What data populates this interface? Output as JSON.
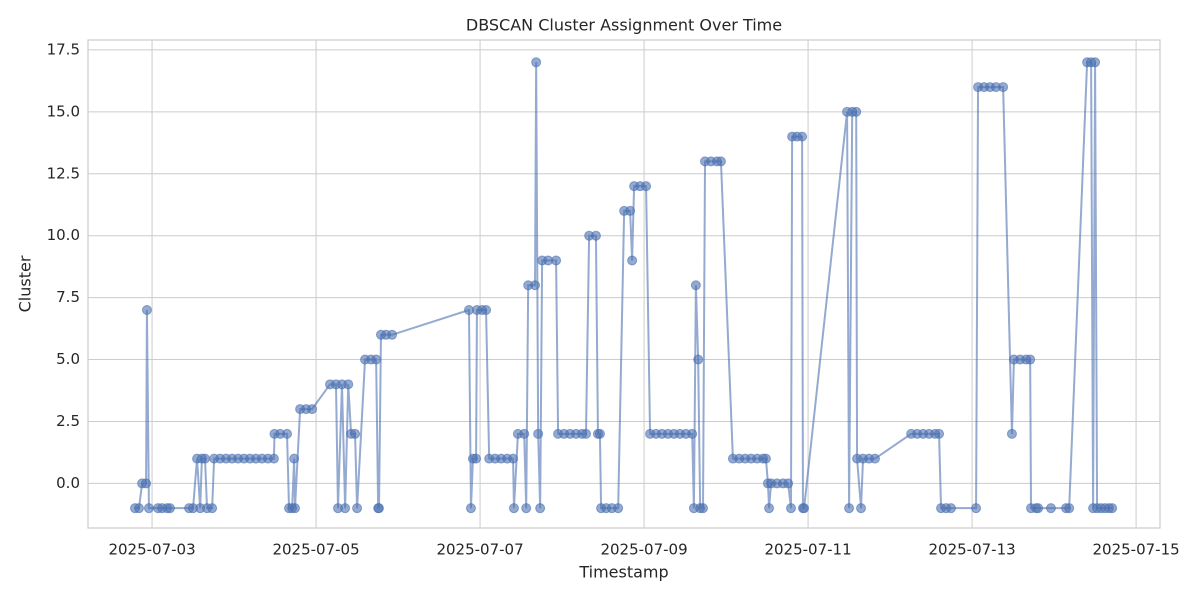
{
  "chart_data": {
    "type": "line",
    "title": "DBSCAN Cluster Assignment Over Time",
    "x_label": "Timestamp",
    "y_label": "Cluster",
    "color": "#4c72b0",
    "grid": true,
    "x": [
      "2025-07-02 19:00",
      "2025-07-02 20:10",
      "2025-07-02 21:05",
      "2025-07-02 22:15",
      "2025-07-02 22:30",
      "2025-07-02 23:05",
      "2025-07-03 01:45",
      "2025-07-03 02:55",
      "2025-07-03 04:25",
      "2025-07-03 05:15",
      "2025-07-03 10:50",
      "2025-07-03 12:00",
      "2025-07-03 13:10",
      "2025-07-03 14:05",
      "2025-07-03 14:35",
      "2025-07-03 15:30",
      "2025-07-03 16:05",
      "2025-07-03 17:35",
      "2025-07-03 18:10",
      "2025-07-03 19:55",
      "2025-07-03 21:40",
      "2025-07-03 23:25",
      "2025-07-04 01:10",
      "2025-07-04 02:55",
      "2025-07-04 04:40",
      "2025-07-04 06:25",
      "2025-07-04 08:10",
      "2025-07-04 09:55",
      "2025-07-04 11:40",
      "2025-07-04 11:50",
      "2025-07-04 13:30",
      "2025-07-04 15:30",
      "2025-07-04 16:05",
      "2025-07-04 17:00",
      "2025-07-04 17:35",
      "2025-07-04 17:50",
      "2025-07-04 19:20",
      "2025-07-04 21:05",
      "2025-07-04 22:50",
      "2025-07-05 04:05",
      "2025-07-05 05:50",
      "2025-07-05 06:25",
      "2025-07-05 07:35",
      "2025-07-05 08:30",
      "2025-07-05 09:25",
      "2025-07-05 10:15",
      "2025-07-05 11:25",
      "2025-07-05 12:00",
      "2025-07-05 14:20",
      "2025-07-05 16:05",
      "2025-07-05 17:35",
      "2025-07-05 18:10",
      "2025-07-05 18:25",
      "2025-07-05 19:00",
      "2025-07-05 20:30",
      "2025-07-05 22:15",
      "2025-07-06 20:45",
      "2025-07-06 21:20",
      "2025-07-06 21:55",
      "2025-07-06 22:50",
      "2025-07-06 23:05",
      "2025-07-07 00:35",
      "2025-07-07 01:45",
      "2025-07-07 02:40",
      "2025-07-07 04:25",
      "2025-07-07 06:10",
      "2025-07-07 07:55",
      "2025-07-07 09:40",
      "2025-07-07 09:55",
      "2025-07-07 11:05",
      "2025-07-07 12:55",
      "2025-07-07 13:30",
      "2025-07-07 14:05",
      "2025-07-07 16:05",
      "2025-07-07 16:25",
      "2025-07-07 17:00",
      "2025-07-07 17:35",
      "2025-07-07 18:10",
      "2025-07-07 19:55",
      "2025-07-07 22:15",
      "2025-07-07 22:50",
      "2025-07-08 00:35",
      "2025-07-08 02:20",
      "2025-07-08 04:05",
      "2025-07-08 05:50",
      "2025-07-08 07:00",
      "2025-07-08 07:55",
      "2025-07-08 09:55",
      "2025-07-08 10:30",
      "2025-07-08 11:05",
      "2025-07-08 11:25",
      "2025-07-08 12:55",
      "2025-07-08 14:35",
      "2025-07-08 16:25",
      "2025-07-08 18:10",
      "2025-07-08 19:55",
      "2025-07-08 20:30",
      "2025-07-08 21:05",
      "2025-07-08 22:50",
      "2025-07-09 00:35",
      "2025-07-09 01:45",
      "2025-07-09 03:30",
      "2025-07-09 05:15",
      "2025-07-09 07:00",
      "2025-07-09 08:45",
      "2025-07-09 10:30",
      "2025-07-09 12:15",
      "2025-07-09 14:05",
      "2025-07-09 14:35",
      "2025-07-09 15:10",
      "2025-07-09 15:50",
      "2025-07-09 16:25",
      "2025-07-09 17:15",
      "2025-07-09 17:50",
      "2025-07-09 19:35",
      "2025-07-09 21:20",
      "2025-07-09 22:30",
      "2025-07-10 02:00",
      "2025-07-10 03:50",
      "2025-07-10 05:35",
      "2025-07-10 07:20",
      "2025-07-10 09:05",
      "2025-07-10 10:50",
      "2025-07-10 11:40",
      "2025-07-10 12:15",
      "2025-07-10 12:35",
      "2025-07-10 13:10",
      "2025-07-10 14:55",
      "2025-07-10 16:40",
      "2025-07-10 18:10",
      "2025-07-10 19:00",
      "2025-07-10 19:20",
      "2025-07-10 20:45",
      "2025-07-10 22:15",
      "2025-07-10 22:30",
      "2025-07-10 22:50",
      "2025-07-11 11:25",
      "2025-07-11 12:00",
      "2025-07-11 12:55",
      "2025-07-11 14:05",
      "2025-07-11 14:20",
      "2025-07-11 15:30",
      "2025-07-11 16:05",
      "2025-07-11 17:50",
      "2025-07-11 19:35",
      "2025-07-12 06:10",
      "2025-07-12 07:55",
      "2025-07-12 09:40",
      "2025-07-12 11:25",
      "2025-07-12 13:10",
      "2025-07-12 14:20",
      "2025-07-12 14:55",
      "2025-07-12 16:25",
      "2025-07-12 17:50",
      "2025-07-13 01:10",
      "2025-07-13 01:45",
      "2025-07-13 03:30",
      "2025-07-13 05:15",
      "2025-07-13 07:00",
      "2025-07-13 09:05",
      "2025-07-13 11:40",
      "2025-07-13 12:15",
      "2025-07-13 14:05",
      "2025-07-13 15:50",
      "2025-07-13 17:00",
      "2025-07-13 17:15",
      "2025-07-13 18:45",
      "2025-07-13 19:20",
      "2025-07-13 23:05",
      "2025-07-14 03:30",
      "2025-07-14 04:25",
      "2025-07-14 09:40",
      "2025-07-14 10:50",
      "2025-07-14 11:25",
      "2025-07-14 12:00",
      "2025-07-14 12:35",
      "2025-07-14 13:45",
      "2025-07-14 14:55",
      "2025-07-14 16:05",
      "2025-07-14 17:00"
    ],
    "values": [
      -1,
      -1,
      0,
      0,
      7,
      -1,
      -1,
      -1,
      -1,
      -1,
      -1,
      -1,
      1,
      -1,
      1,
      1,
      -1,
      -1,
      1,
      1,
      1,
      1,
      1,
      1,
      1,
      1,
      1,
      1,
      1,
      2,
      2,
      2,
      -1,
      -1,
      1,
      -1,
      3,
      3,
      3,
      4,
      4,
      -1,
      4,
      -1,
      4,
      2,
      2,
      -1,
      5,
      5,
      5,
      -1,
      -1,
      6,
      6,
      6,
      7,
      -1,
      1,
      1,
      7,
      7,
      7,
      1,
      1,
      1,
      1,
      1,
      -1,
      2,
      2,
      -1,
      8,
      8,
      17,
      2,
      -1,
      9,
      9,
      9,
      2,
      2,
      2,
      2,
      2,
      2,
      10,
      10,
      2,
      2,
      -1,
      -1,
      -1,
      -1,
      11,
      11,
      9,
      12,
      12,
      12,
      2,
      2,
      2,
      2,
      2,
      2,
      2,
      2,
      -1,
      8,
      5,
      -1,
      -1,
      13,
      13,
      13,
      13,
      1,
      1,
      1,
      1,
      1,
      1,
      1,
      0,
      -1,
      0,
      0,
      0,
      0,
      -1,
      14,
      14,
      14,
      -1,
      -1,
      15,
      -1,
      15,
      15,
      1,
      -1,
      1,
      1,
      1,
      2,
      2,
      2,
      2,
      2,
      2,
      -1,
      -1,
      -1,
      -1,
      16,
      16,
      16,
      16,
      16,
      2,
      5,
      5,
      5,
      5,
      -1,
      -1,
      -1,
      -1,
      -1,
      -1,
      17,
      17,
      -1,
      17,
      -1,
      -1,
      -1,
      -1,
      -1
    ],
    "xlim": [
      "2025-07-02 05:15",
      "2025-07-15 07:00"
    ],
    "xticks": [
      "2025-07-03",
      "2025-07-05",
      "2025-07-07",
      "2025-07-09",
      "2025-07-11",
      "2025-07-13",
      "2025-07-15"
    ],
    "ylim": [
      -1.8,
      17.9
    ],
    "yticks": [
      {
        "value": 0,
        "label": "0.0"
      },
      {
        "value": 2.5,
        "label": "2.5"
      },
      {
        "value": 5,
        "label": "5.0"
      },
      {
        "value": 7.5,
        "label": "7.5"
      },
      {
        "value": 10,
        "label": "10.0"
      },
      {
        "value": 12.5,
        "label": "12.5"
      },
      {
        "value": 15,
        "label": "15.0"
      },
      {
        "value": 17.5,
        "label": "17.5"
      }
    ]
  }
}
